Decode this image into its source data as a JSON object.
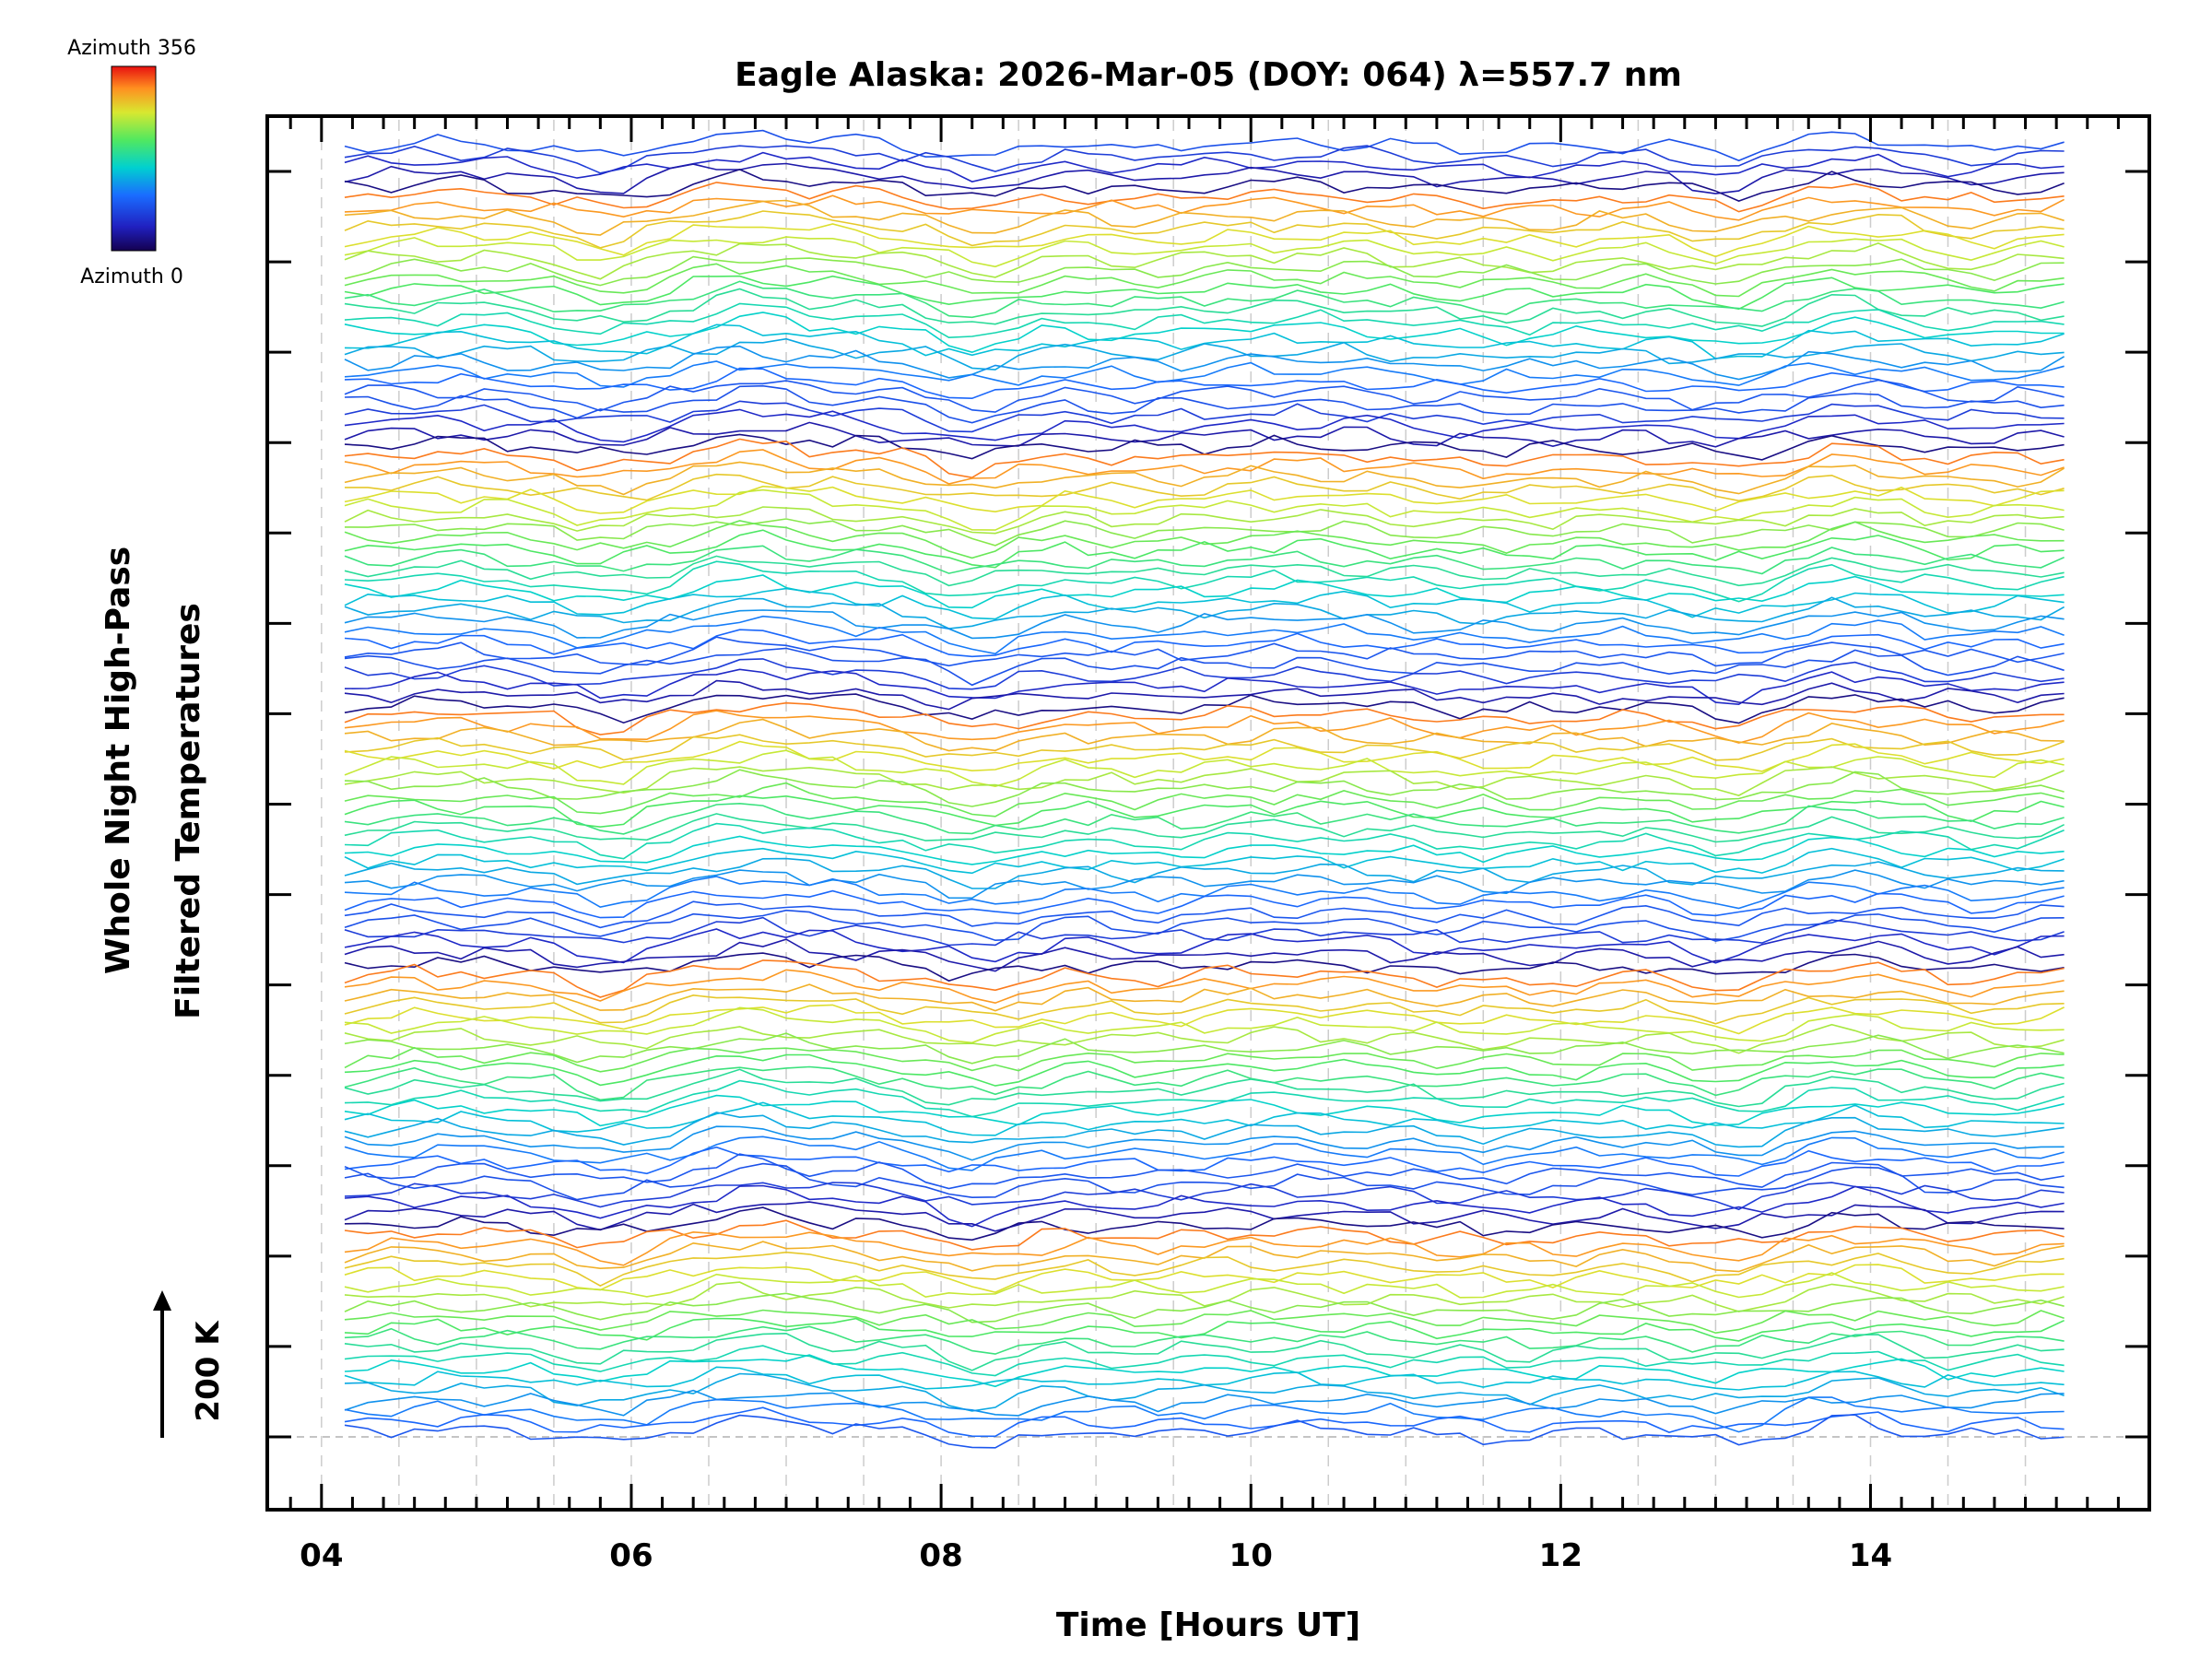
{
  "chart_data": {
    "type": "line",
    "title": "Eagle Alaska: 2026-Mar-05 (DOY: 064) λ=557.7 nm",
    "xlabel": "Time [Hours UT]",
    "ylabel_line1": "Whole Night High-Pass",
    "ylabel_line2": "Filtered Temperatures",
    "x_ticks": [
      "04",
      "06",
      "08",
      "10",
      "12",
      "14"
    ],
    "x_tick_values": [
      4,
      6,
      8,
      10,
      12,
      14
    ],
    "xlim": [
      3.65,
      15.8
    ],
    "x_start": 4.15,
    "x_end": 15.3,
    "sample_step_hours": 0.15,
    "grid": true,
    "y_ticks_count": 15,
    "scale_bar": {
      "label": "200 K",
      "value_K": 200
    },
    "colorbar": {
      "label_top": "Azimuth 356",
      "label_bottom": "Azimuth 0",
      "min": 0,
      "max": 356,
      "colormap": "rainbow"
    },
    "n_series": 125,
    "series_per_sweep": 25,
    "n_sweeps": 5
  }
}
